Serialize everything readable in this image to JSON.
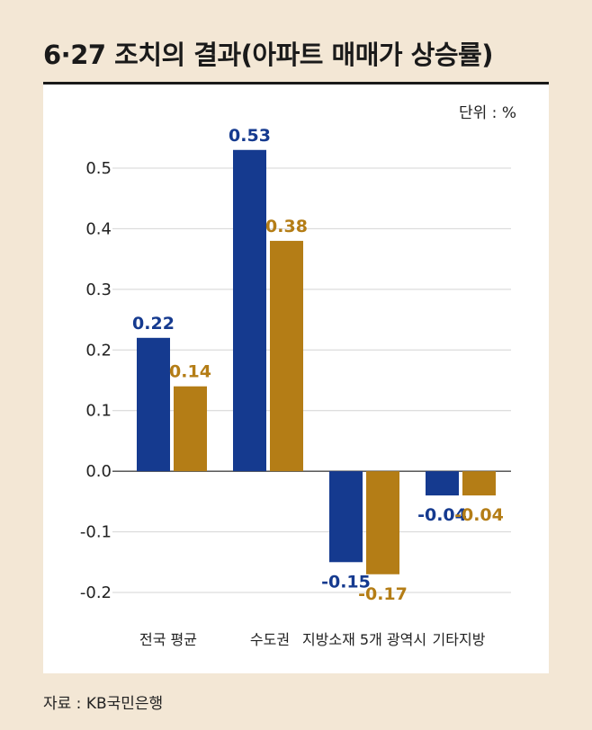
{
  "header": {
    "title": "6·27 조치의 결과(아파트 매매가 상승률)",
    "unit": "단위 : %",
    "source": "자료 : KB국민은행"
  },
  "colors": {
    "series1": "#153a8f",
    "series2": "#b47d16",
    "background": "#f3e7d5",
    "panel": "#ffffff"
  },
  "chart_data": {
    "type": "bar",
    "title": "6·27 조치의 결과(아파트 매매가 상승률)",
    "xlabel": "",
    "ylabel": "",
    "unit": "%",
    "categories": [
      "전국 평균",
      "수도권",
      "지방소재 5개 광역시",
      "기타지방"
    ],
    "series": [
      {
        "name": "series-1",
        "values": [
          0.22,
          0.53,
          -0.15,
          -0.04
        ]
      },
      {
        "name": "series-2",
        "values": [
          0.14,
          0.38,
          -0.17,
          -0.04
        ]
      }
    ],
    "data_labels": [
      [
        "0.22",
        "0.53",
        "-0.15",
        "-0.04"
      ],
      [
        "0.14",
        "0.38",
        "-0.17",
        "-0.04"
      ]
    ],
    "ylim": [
      -0.2,
      0.5
    ],
    "yticks": [
      0.5,
      0.4,
      0.3,
      0.2,
      0.1,
      0.0,
      -0.1,
      -0.2
    ],
    "ytick_labels": [
      "0.5",
      "0.4",
      "0.3",
      "0.2",
      "0.1",
      "0.0",
      "-0.1",
      "-0.2"
    ],
    "grid": true,
    "legend": "none"
  }
}
